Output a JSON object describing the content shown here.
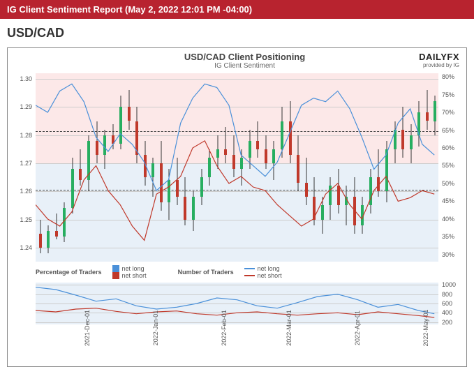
{
  "header": "IG Client Sentiment Report (May 2, 2022 12:01 PM -04:00)",
  "pair": "USD/CAD",
  "chart": {
    "title": "USD/CAD Client Positioning",
    "subtitle": "IG Client Sentiment",
    "brand": "DAILYFX",
    "brand_sub": "provided by IG",
    "left_axis": {
      "ticks": [
        1.24,
        1.25,
        1.26,
        1.27,
        1.28,
        1.29,
        1.3
      ],
      "min": 1.235,
      "max": 1.302
    },
    "right_axis": {
      "ticks": [
        30,
        35,
        40,
        45,
        50,
        55,
        60,
        65,
        70,
        75,
        80
      ],
      "min": 28,
      "max": 81
    },
    "ref_lines": [
      1.2605,
      1.2815
    ],
    "x_ticks": [
      "2021-Dec-01",
      "2022-Jan-01",
      "2022-Feb-01",
      "2022-Mar-01",
      "2022-Apr-01",
      "2022-May-01"
    ],
    "x_positions": [
      12,
      29,
      46,
      62,
      79,
      96
    ],
    "blue_line": [
      [
        0,
        72
      ],
      [
        3,
        70
      ],
      [
        6,
        76
      ],
      [
        9,
        78
      ],
      [
        12,
        73
      ],
      [
        15,
        63
      ],
      [
        18,
        59
      ],
      [
        21,
        64
      ],
      [
        24,
        61
      ],
      [
        27,
        56
      ],
      [
        30,
        48
      ],
      [
        33,
        51
      ],
      [
        36,
        67
      ],
      [
        39,
        74
      ],
      [
        42,
        78
      ],
      [
        45,
        77
      ],
      [
        48,
        72
      ],
      [
        51,
        58
      ],
      [
        54,
        55
      ],
      [
        57,
        52
      ],
      [
        60,
        56
      ],
      [
        63,
        64
      ],
      [
        66,
        72
      ],
      [
        69,
        74
      ],
      [
        72,
        73
      ],
      [
        75,
        76
      ],
      [
        78,
        71
      ],
      [
        81,
        63
      ],
      [
        84,
        54
      ],
      [
        87,
        58
      ],
      [
        90,
        67
      ],
      [
        93,
        71
      ],
      [
        96,
        61
      ],
      [
        99,
        58
      ]
    ],
    "red_line": [
      [
        0,
        44
      ],
      [
        3,
        40
      ],
      [
        6,
        38
      ],
      [
        9,
        42
      ],
      [
        12,
        51
      ],
      [
        15,
        55
      ],
      [
        18,
        48
      ],
      [
        21,
        44
      ],
      [
        24,
        38
      ],
      [
        27,
        34
      ],
      [
        30,
        47
      ],
      [
        33,
        49
      ],
      [
        36,
        52
      ],
      [
        39,
        60
      ],
      [
        42,
        62
      ],
      [
        45,
        55
      ],
      [
        48,
        50
      ],
      [
        51,
        52
      ],
      [
        54,
        49
      ],
      [
        57,
        48
      ],
      [
        60,
        44
      ],
      [
        63,
        41
      ],
      [
        66,
        38
      ],
      [
        69,
        40
      ],
      [
        72,
        47
      ],
      [
        75,
        50
      ],
      [
        78,
        44
      ],
      [
        81,
        40
      ],
      [
        84,
        48
      ],
      [
        87,
        52
      ],
      [
        90,
        45
      ],
      [
        93,
        46
      ],
      [
        96,
        48
      ],
      [
        99,
        47
      ]
    ],
    "candles": [
      {
        "x": 1,
        "o": 1.245,
        "h": 1.25,
        "l": 1.238,
        "c": 1.24,
        "up": false
      },
      {
        "x": 3,
        "o": 1.24,
        "h": 1.248,
        "l": 1.238,
        "c": 1.246,
        "up": true
      },
      {
        "x": 5,
        "o": 1.246,
        "h": 1.252,
        "l": 1.243,
        "c": 1.244,
        "up": false
      },
      {
        "x": 7,
        "o": 1.244,
        "h": 1.256,
        "l": 1.242,
        "c": 1.254,
        "up": true
      },
      {
        "x": 9,
        "o": 1.254,
        "h": 1.272,
        "l": 1.252,
        "c": 1.268,
        "up": true
      },
      {
        "x": 11,
        "o": 1.268,
        "h": 1.275,
        "l": 1.262,
        "c": 1.264,
        "up": false
      },
      {
        "x": 13,
        "o": 1.264,
        "h": 1.28,
        "l": 1.26,
        "c": 1.278,
        "up": true
      },
      {
        "x": 15,
        "o": 1.278,
        "h": 1.285,
        "l": 1.27,
        "c": 1.273,
        "up": false
      },
      {
        "x": 17,
        "o": 1.273,
        "h": 1.282,
        "l": 1.268,
        "c": 1.28,
        "up": true
      },
      {
        "x": 19,
        "o": 1.28,
        "h": 1.284,
        "l": 1.275,
        "c": 1.277,
        "up": false
      },
      {
        "x": 21,
        "o": 1.277,
        "h": 1.294,
        "l": 1.275,
        "c": 1.29,
        "up": true
      },
      {
        "x": 23,
        "o": 1.29,
        "h": 1.296,
        "l": 1.282,
        "c": 1.285,
        "up": false
      },
      {
        "x": 25,
        "o": 1.285,
        "h": 1.29,
        "l": 1.27,
        "c": 1.273,
        "up": false
      },
      {
        "x": 27,
        "o": 1.273,
        "h": 1.278,
        "l": 1.262,
        "c": 1.265,
        "up": false
      },
      {
        "x": 29,
        "o": 1.265,
        "h": 1.272,
        "l": 1.258,
        "c": 1.27,
        "up": true
      },
      {
        "x": 31,
        "o": 1.27,
        "h": 1.278,
        "l": 1.253,
        "c": 1.256,
        "up": false
      },
      {
        "x": 33,
        "o": 1.256,
        "h": 1.268,
        "l": 1.25,
        "c": 1.264,
        "up": true
      },
      {
        "x": 35,
        "o": 1.264,
        "h": 1.272,
        "l": 1.255,
        "c": 1.258,
        "up": false
      },
      {
        "x": 37,
        "o": 1.258,
        "h": 1.265,
        "l": 1.248,
        "c": 1.25,
        "up": false
      },
      {
        "x": 39,
        "o": 1.25,
        "h": 1.26,
        "l": 1.246,
        "c": 1.258,
        "up": true
      },
      {
        "x": 41,
        "o": 1.258,
        "h": 1.268,
        "l": 1.255,
        "c": 1.265,
        "up": true
      },
      {
        "x": 43,
        "o": 1.265,
        "h": 1.275,
        "l": 1.262,
        "c": 1.272,
        "up": true
      },
      {
        "x": 45,
        "o": 1.272,
        "h": 1.28,
        "l": 1.268,
        "c": 1.275,
        "up": true
      },
      {
        "x": 47,
        "o": 1.275,
        "h": 1.283,
        "l": 1.27,
        "c": 1.273,
        "up": false
      },
      {
        "x": 49,
        "o": 1.273,
        "h": 1.28,
        "l": 1.265,
        "c": 1.268,
        "up": false
      },
      {
        "x": 51,
        "o": 1.268,
        "h": 1.275,
        "l": 1.262,
        "c": 1.272,
        "up": true
      },
      {
        "x": 53,
        "o": 1.272,
        "h": 1.282,
        "l": 1.268,
        "c": 1.278,
        "up": true
      },
      {
        "x": 55,
        "o": 1.278,
        "h": 1.285,
        "l": 1.272,
        "c": 1.275,
        "up": false
      },
      {
        "x": 57,
        "o": 1.275,
        "h": 1.28,
        "l": 1.268,
        "c": 1.27,
        "up": false
      },
      {
        "x": 59,
        "o": 1.27,
        "h": 1.278,
        "l": 1.264,
        "c": 1.275,
        "up": true
      },
      {
        "x": 61,
        "o": 1.275,
        "h": 1.29,
        "l": 1.272,
        "c": 1.285,
        "up": true
      },
      {
        "x": 63,
        "o": 1.285,
        "h": 1.292,
        "l": 1.27,
        "c": 1.273,
        "up": false
      },
      {
        "x": 65,
        "o": 1.273,
        "h": 1.28,
        "l": 1.26,
        "c": 1.263,
        "up": false
      },
      {
        "x": 67,
        "o": 1.263,
        "h": 1.272,
        "l": 1.255,
        "c": 1.258,
        "up": false
      },
      {
        "x": 69,
        "o": 1.258,
        "h": 1.265,
        "l": 1.248,
        "c": 1.25,
        "up": false
      },
      {
        "x": 71,
        "o": 1.25,
        "h": 1.258,
        "l": 1.245,
        "c": 1.255,
        "up": true
      },
      {
        "x": 73,
        "o": 1.255,
        "h": 1.265,
        "l": 1.25,
        "c": 1.262,
        "up": true
      },
      {
        "x": 75,
        "o": 1.262,
        "h": 1.268,
        "l": 1.252,
        "c": 1.255,
        "up": false
      },
      {
        "x": 77,
        "o": 1.255,
        "h": 1.262,
        "l": 1.248,
        "c": 1.258,
        "up": true
      },
      {
        "x": 79,
        "o": 1.258,
        "h": 1.265,
        "l": 1.245,
        "c": 1.248,
        "up": false
      },
      {
        "x": 81,
        "o": 1.248,
        "h": 1.258,
        "l": 1.245,
        "c": 1.255,
        "up": true
      },
      {
        "x": 83,
        "o": 1.255,
        "h": 1.268,
        "l": 1.252,
        "c": 1.265,
        "up": true
      },
      {
        "x": 85,
        "o": 1.265,
        "h": 1.275,
        "l": 1.258,
        "c": 1.26,
        "up": false
      },
      {
        "x": 87,
        "o": 1.26,
        "h": 1.278,
        "l": 1.256,
        "c": 1.275,
        "up": true
      },
      {
        "x": 89,
        "o": 1.275,
        "h": 1.285,
        "l": 1.27,
        "c": 1.282,
        "up": true
      },
      {
        "x": 91,
        "o": 1.282,
        "h": 1.29,
        "l": 1.272,
        "c": 1.275,
        "up": false
      },
      {
        "x": 93,
        "o": 1.275,
        "h": 1.284,
        "l": 1.27,
        "c": 1.28,
        "up": true
      },
      {
        "x": 95,
        "o": 1.28,
        "h": 1.292,
        "l": 1.276,
        "c": 1.288,
        "up": true
      },
      {
        "x": 97,
        "o": 1.288,
        "h": 1.296,
        "l": 1.282,
        "c": 1.285,
        "up": false
      },
      {
        "x": 99,
        "o": 1.285,
        "h": 1.294,
        "l": 1.28,
        "c": 1.292,
        "up": true
      }
    ],
    "colors": {
      "blue": "#4a90d9",
      "red": "#c0392b",
      "green": "#27ae60",
      "candle_red": "#c0392b"
    }
  },
  "legend1": {
    "title": "Percentage of Traders",
    "items": [
      {
        "label": "net long",
        "color": "#4a90d9",
        "type": "swatch"
      },
      {
        "label": "net short",
        "color": "#c0392b",
        "type": "swatch"
      }
    ]
  },
  "legend2": {
    "title": "Number of Traders",
    "items": [
      {
        "label": "net long",
        "color": "#4a90d9",
        "type": "line"
      },
      {
        "label": "net short",
        "color": "#c0392b",
        "type": "line"
      }
    ]
  },
  "sub_chart": {
    "right_axis": {
      "ticks": [
        200,
        400,
        600,
        800,
        1000
      ],
      "min": 150,
      "max": 1050
    },
    "blue_line": [
      [
        0,
        950
      ],
      [
        5,
        900
      ],
      [
        10,
        780
      ],
      [
        15,
        650
      ],
      [
        20,
        700
      ],
      [
        25,
        550
      ],
      [
        30,
        480
      ],
      [
        35,
        520
      ],
      [
        40,
        600
      ],
      [
        45,
        720
      ],
      [
        50,
        680
      ],
      [
        55,
        550
      ],
      [
        60,
        500
      ],
      [
        65,
        620
      ],
      [
        70,
        750
      ],
      [
        75,
        800
      ],
      [
        80,
        680
      ],
      [
        85,
        520
      ],
      [
        90,
        580
      ],
      [
        95,
        450
      ],
      [
        99,
        380
      ]
    ],
    "red_line": [
      [
        0,
        450
      ],
      [
        5,
        420
      ],
      [
        10,
        480
      ],
      [
        15,
        500
      ],
      [
        20,
        430
      ],
      [
        25,
        380
      ],
      [
        30,
        420
      ],
      [
        35,
        440
      ],
      [
        40,
        380
      ],
      [
        45,
        350
      ],
      [
        50,
        400
      ],
      [
        55,
        420
      ],
      [
        60,
        380
      ],
      [
        65,
        350
      ],
      [
        70,
        380
      ],
      [
        75,
        400
      ],
      [
        80,
        360
      ],
      [
        85,
        420
      ],
      [
        90,
        380
      ],
      [
        95,
        340
      ],
      [
        99,
        300
      ]
    ]
  }
}
